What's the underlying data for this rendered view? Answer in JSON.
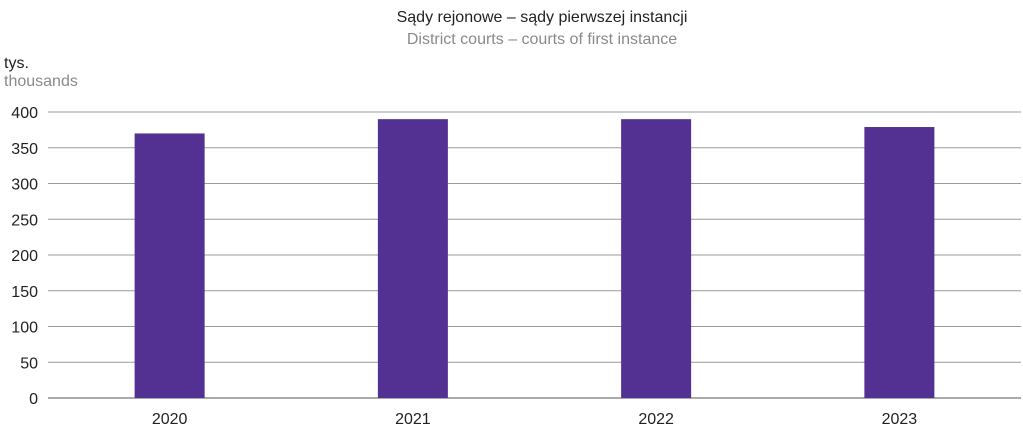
{
  "chart_data": {
    "type": "bar",
    "title": "Sądy rejonowe – sądy pierwszej instancji",
    "subtitle": "District courts – courts of first instance",
    "ylabel": "tys.",
    "ylabel_secondary": "thousands",
    "categories": [
      "2020",
      "2021",
      "2022",
      "2023"
    ],
    "values": [
      370,
      390,
      390,
      379
    ],
    "ylim": [
      0,
      400
    ],
    "yticks": [
      "0",
      "50",
      "100",
      "150",
      "200",
      "250",
      "300",
      "350",
      "400"
    ],
    "grid": true,
    "legend": "none",
    "bar_color": "#523192"
  }
}
